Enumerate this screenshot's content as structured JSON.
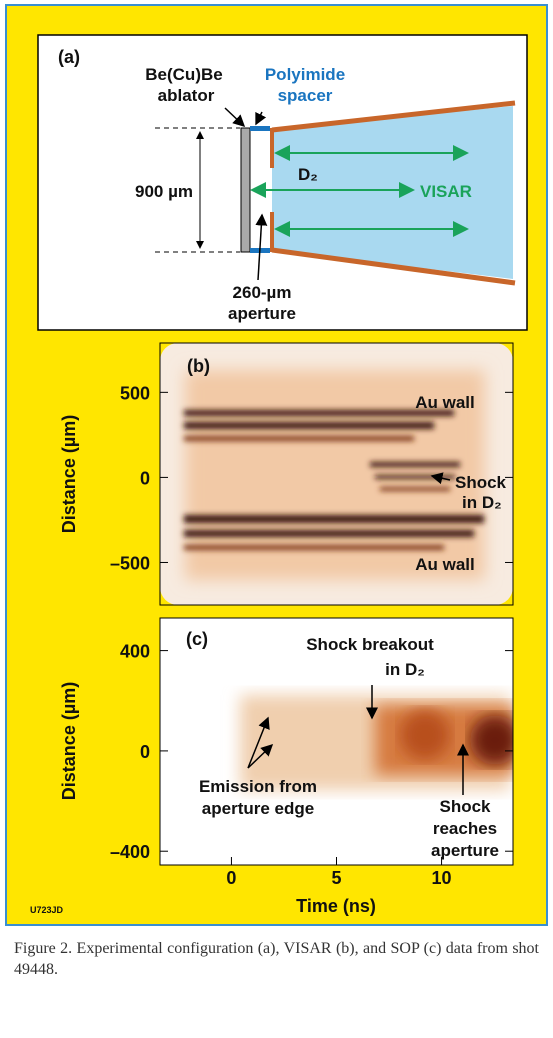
{
  "panel_a": {
    "label": "(a)",
    "ablator_line1": "Be(Cu)Be",
    "ablator_line2": "ablator",
    "spacer_line1": "Polyimide",
    "spacer_line2": "spacer",
    "d2": "D₂",
    "width": "900 µm",
    "visar": "VISAR",
    "aperture_line1": "260-µm",
    "aperture_line2": "aperture"
  },
  "panel_b": {
    "label": "(b)",
    "ylabel": "Distance (µm)",
    "ylim": [
      -750,
      790
    ],
    "yticks": [
      {
        "value": -500,
        "label": "–500"
      },
      0,
      500
    ],
    "wall_top": "Au wall",
    "wall_bottom": "Au wall",
    "shock_line1": "Shock",
    "shock_line2": "in D₂"
  },
  "panel_c": {
    "label": "(c)",
    "ylabel": "Distance (µm)",
    "ylim": [
      -455,
      530
    ],
    "yticks": [
      {
        "value": -400,
        "label": "–400"
      },
      0,
      400
    ],
    "breakout_line1": "Shock breakout",
    "breakout_line2": "in D₂",
    "emission_line1": "Emission from",
    "emission_line2": "aperture edge",
    "reach_line1": "Shock",
    "reach_line2": "reaches",
    "reach_line3": "aperture"
  },
  "xaxis": {
    "label": "Time (ns)",
    "xlim": [
      -3.4,
      13.4
    ],
    "xticks": [
      0,
      5,
      10
    ]
  },
  "figure_id": "U723JD",
  "caption": "Figure 2. Experimental configuration (a), VISAR (b), and SOP (c) data from shot 49448."
}
